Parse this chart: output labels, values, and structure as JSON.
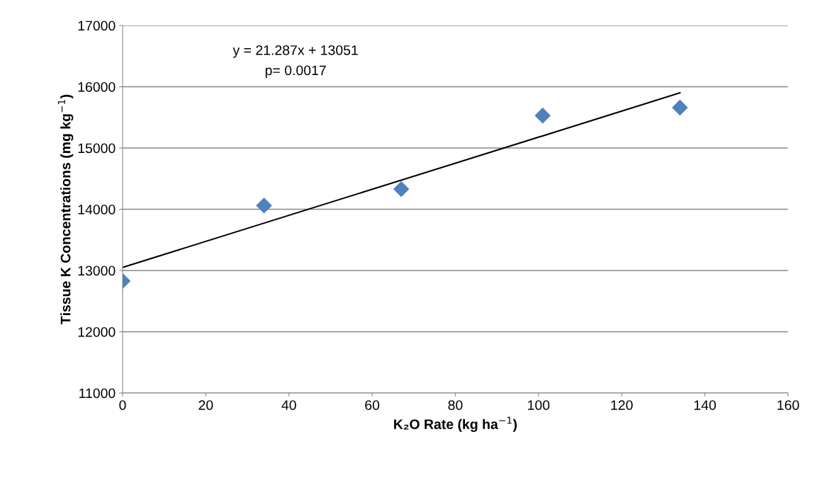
{
  "chart_data": {
    "type": "scatter",
    "xlabel": "K₂O Rate (kg ha$^{−1}$)",
    "ylabel": "Tissue K Concentrations (mg kg$^{−1}$)",
    "xlim": [
      0,
      160
    ],
    "xticks": [
      0,
      20,
      40,
      60,
      80,
      100,
      120,
      140,
      160
    ],
    "ylim": [
      11000,
      17000
    ],
    "yticks": [
      11000,
      12000,
      13000,
      14000,
      15000,
      16000,
      17000
    ],
    "grid": "y",
    "legend": false,
    "series": [
      {
        "color": "#4f81bd",
        "marker": "diamond",
        "x": [
          0,
          34,
          67,
          101,
          134
        ],
        "values": [
          12830,
          14060,
          14330,
          15530,
          15660
        ]
      },
      {
        "type": "line",
        "color": "#000000",
        "line_style": "solid",
        "marker": "none",
        "x": [
          0,
          134
        ],
        "values": [
          13050,
          15900
        ]
      }
    ],
    "annotations": [
      "y = 21.287x + 13051",
      "p= 0.0017"
    ]
  }
}
